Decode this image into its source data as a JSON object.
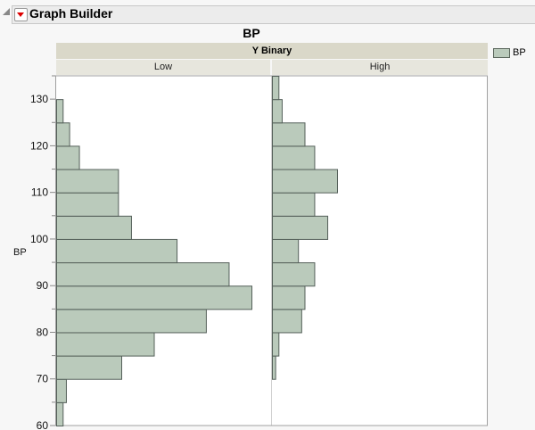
{
  "outline": {
    "title": "Graph Builder"
  },
  "chart_data": {
    "type": "bar",
    "orientation": "horizontal histogram",
    "title": "BP",
    "group_title": "Y Binary",
    "ylabel": "BP",
    "ylim": [
      60,
      135
    ],
    "yticks": [
      60,
      70,
      80,
      90,
      100,
      110,
      120,
      130
    ],
    "bin_width": 5,
    "legend": {
      "entries": [
        "BP"
      ],
      "placement": "top-right"
    },
    "bar_color": "#bacabb",
    "panels": [
      {
        "name": "Low",
        "bins": [
          60,
          65,
          70,
          75,
          80,
          85,
          90,
          95,
          100,
          105,
          110,
          115,
          120,
          125
        ],
        "counts": [
          2,
          3,
          20,
          30,
          46,
          60,
          53,
          37,
          23,
          19,
          19,
          7,
          4,
          2
        ]
      },
      {
        "name": "High",
        "bins": [
          70,
          75,
          80,
          85,
          90,
          95,
          100,
          105,
          110,
          115,
          120,
          125,
          130
        ],
        "counts": [
          1,
          2,
          9,
          10,
          13,
          8,
          17,
          13,
          20,
          13,
          10,
          3,
          2
        ]
      }
    ]
  }
}
